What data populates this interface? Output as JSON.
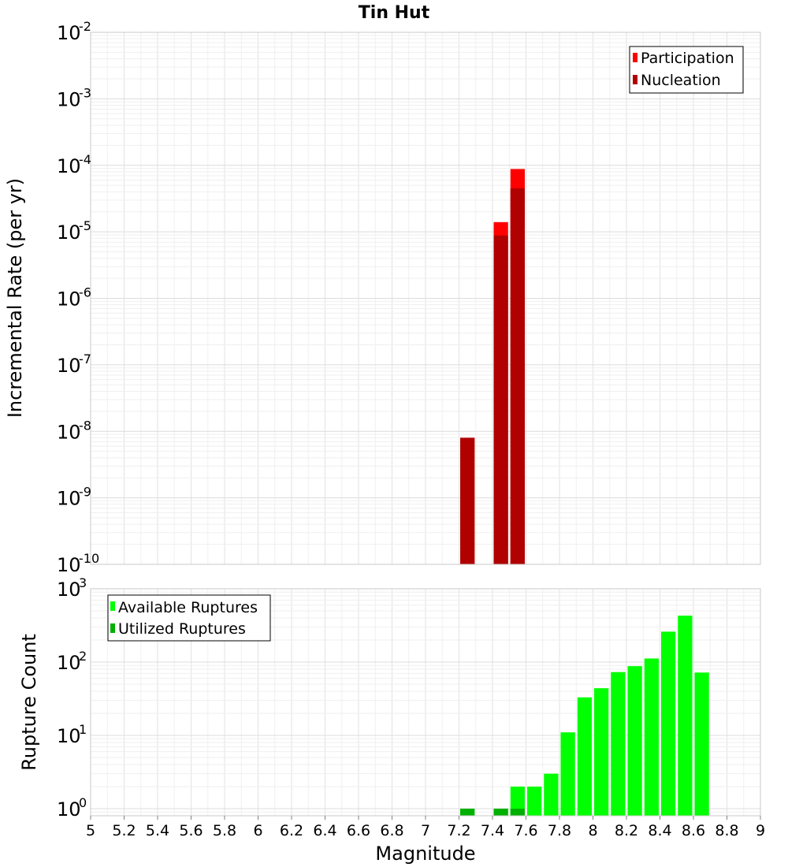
{
  "chart_data": [
    {
      "type": "bar",
      "title": "Tin Hut",
      "xlabel": "Magnitude",
      "ylabel": "Incremental Rate (per yr)",
      "yscale": "log",
      "xlim": [
        5,
        9
      ],
      "ylim": [
        1e-10,
        0.01
      ],
      "bin_width": 0.1,
      "grid": true,
      "legend_position": "top-right",
      "x_ticks": [
        "5",
        "5.2",
        "5.4",
        "5.6",
        "5.8",
        "6",
        "6.2",
        "6.4",
        "6.6",
        "6.8",
        "7",
        "7.2",
        "7.4",
        "7.6",
        "7.8",
        "8",
        "8.2",
        "8.4",
        "8.6",
        "8.8",
        "9"
      ],
      "y_tick_exponents": [
        "-2",
        "-3",
        "-4",
        "-5",
        "-6",
        "-7",
        "-8",
        "-9",
        "-10"
      ],
      "series": [
        {
          "name": "Participation",
          "color": "#ff0000",
          "x": [
            7.25,
            7.45,
            7.55
          ],
          "values": [
            8e-09,
            1.4e-05,
            8.8e-05
          ]
        },
        {
          "name": "Nucleation",
          "color": "#b00000",
          "x": [
            7.25,
            7.45,
            7.55
          ],
          "values": [
            8e-09,
            8.8e-06,
            4.5e-05
          ]
        }
      ]
    },
    {
      "type": "bar",
      "xlabel": "Magnitude",
      "ylabel": "Rupture Count",
      "yscale": "log",
      "xlim": [
        5,
        9
      ],
      "ylim": [
        0.8,
        1000
      ],
      "bin_width": 0.1,
      "grid": true,
      "legend_position": "top-left",
      "y_tick_exponents": [
        "3",
        "2",
        "1",
        "0"
      ],
      "series": [
        {
          "name": "Available Ruptures",
          "color": "#00ff00",
          "x": [
            7.25,
            7.45,
            7.55,
            7.65,
            7.75,
            7.85,
            7.95,
            8.05,
            8.15,
            8.25,
            8.35,
            8.45,
            8.55,
            8.65
          ],
          "values": [
            1,
            1,
            2,
            2,
            3,
            11,
            33,
            44,
            73,
            88,
            112,
            260,
            430,
            72
          ]
        },
        {
          "name": "Utilized Ruptures",
          "color": "#00b000",
          "x": [
            7.25,
            7.45,
            7.55
          ],
          "values": [
            1,
            1,
            1
          ]
        }
      ]
    }
  ]
}
